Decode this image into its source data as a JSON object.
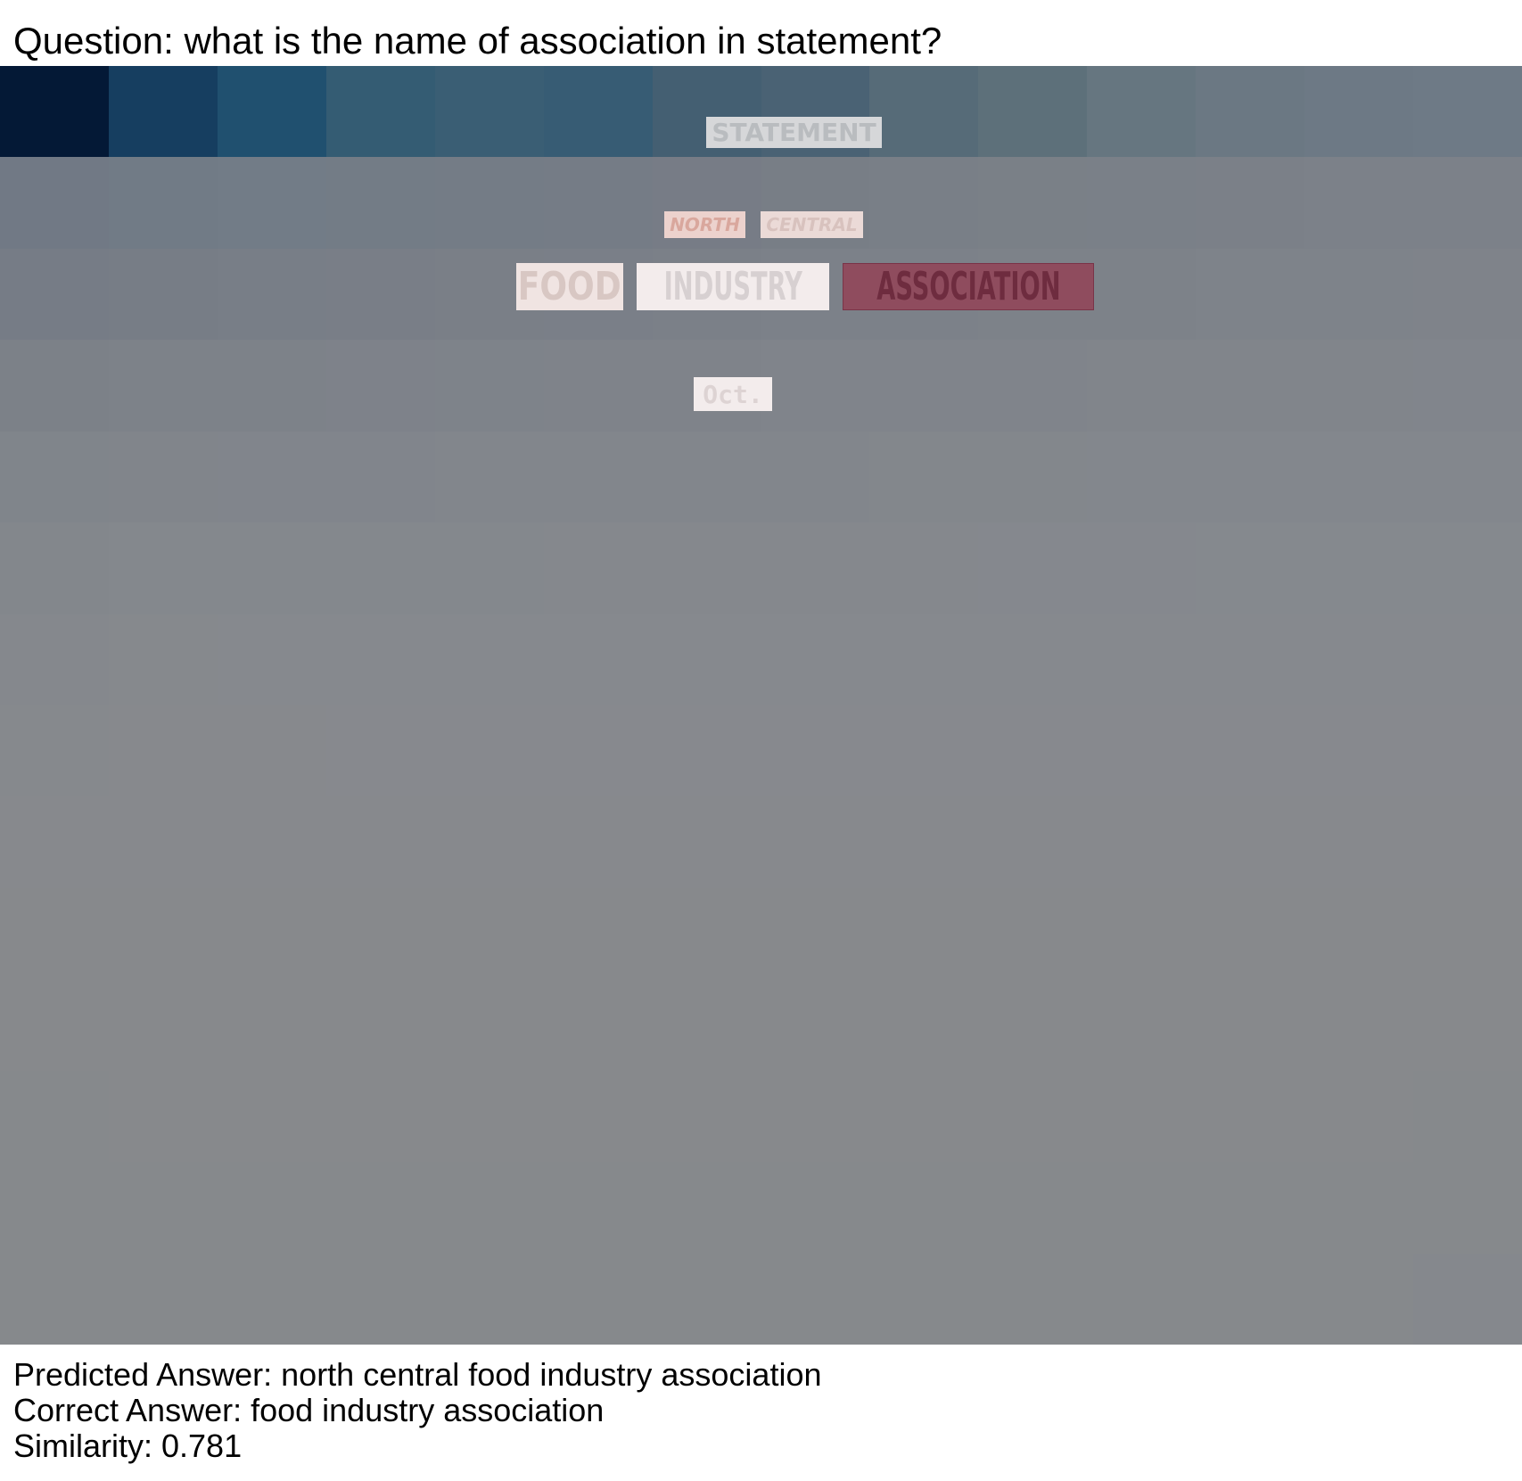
{
  "question": "Question: what is the name of association in statement?",
  "document": {
    "words": {
      "statement": "STATEMENT",
      "north": "NORTH",
      "central": "CENTRAL",
      "food": "FOOD",
      "industry": "INDUSTRY",
      "association": "ASSOCIATION",
      "oct": "Oct."
    },
    "heatmap_colors": [
      [
        "#041936",
        "#163e60",
        "#20506f",
        "#345c73",
        "#3a5e74",
        "#375c74",
        "#445f72",
        "#4a6274",
        "#566b78",
        "#5d707a",
        "#667680",
        "#6b7883",
        "#6d7985",
        "#6e7a86"
      ],
      [
        "#717985",
        "#717b86",
        "#727c87",
        "#737c86",
        "#747c86",
        "#757c86",
        "#777c86",
        "#787e86",
        "#797f87",
        "#7a8087",
        "#7a8088",
        "#7b8088",
        "#7c8189",
        "#7c8189"
      ],
      [
        "#767c86",
        "#777d86",
        "#787e87",
        "#797e87",
        "#7a7f87",
        "#7a7f88",
        "#7b8088",
        "#7c8189",
        "#7c8189",
        "#7d8289",
        "#7d8289",
        "#7e838a",
        "#7e838a",
        "#7f838a"
      ],
      [
        "#7c8188",
        "#7d8289",
        "#7d8289",
        "#7e828a",
        "#7e838a",
        "#7f838a",
        "#7f838a",
        "#80848b",
        "#80848b",
        "#80848b",
        "#81858b",
        "#81858b",
        "#81858b",
        "#81858c"
      ],
      [
        "#80858b",
        "#81858b",
        "#81858c",
        "#81858c",
        "#82868c",
        "#82868c",
        "#82868c",
        "#82868c",
        "#83878c",
        "#83878c",
        "#83878d",
        "#83878d",
        "#83878d",
        "#83878d"
      ],
      [
        "#83878c",
        "#84888d",
        "#84888d",
        "#84888d",
        "#84888d",
        "#85888d",
        "#85888d",
        "#85888d",
        "#85888d",
        "#85888e",
        "#85888e",
        "#85898e",
        "#85898e",
        "#85898e"
      ],
      [
        "#85888d",
        "#86898d",
        "#86898e",
        "#86898e",
        "#86898e",
        "#86898e",
        "#86898e",
        "#86898e",
        "#86898e",
        "#86898e",
        "#86898e",
        "#86898e",
        "#86898e",
        "#86898e"
      ],
      [
        "#86898d",
        "#87898d",
        "#87898d",
        "#87898e",
        "#87898e",
        "#87898e",
        "#87898e",
        "#87898e",
        "#87898e",
        "#87898e",
        "#87898e",
        "#87898e",
        "#87898e",
        "#87898e"
      ],
      [
        "#87898d",
        "#87898d",
        "#87898d",
        "#87898d",
        "#87898d",
        "#87898d",
        "#87898d",
        "#87898d",
        "#87898d",
        "#87898d",
        "#87898d",
        "#87898d",
        "#87898d",
        "#87898d"
      ],
      [
        "#87898c",
        "#87898c",
        "#87898c",
        "#87898c",
        "#87898c",
        "#87898c",
        "#87898c",
        "#87898c",
        "#87898c",
        "#87898c",
        "#87898c",
        "#87898c",
        "#87898c",
        "#87898c"
      ],
      [
        "#87898c",
        "#87898c",
        "#87898c",
        "#87898c",
        "#87898c",
        "#87898c",
        "#87898c",
        "#87898c",
        "#87898c",
        "#87898c",
        "#87898c",
        "#87898c",
        "#87898c",
        "#87898c"
      ],
      [
        "#86898c",
        "#87898c",
        "#87898c",
        "#87898c",
        "#87898c",
        "#87898c",
        "#87898c",
        "#87898c",
        "#87898c",
        "#87898c",
        "#87898c",
        "#87898c",
        "#87898c",
        "#86898c"
      ],
      [
        "#86898c",
        "#86898c",
        "#86898c",
        "#86898c",
        "#86898c",
        "#86898c",
        "#86898c",
        "#86898c",
        "#86898c",
        "#86898c",
        "#86898c",
        "#86898c",
        "#86898c",
        "#86898c"
      ],
      [
        "#86898c",
        "#86898c",
        "#86898c",
        "#86898c",
        "#86898c",
        "#86898c",
        "#86898c",
        "#86898c",
        "#86898c",
        "#86898c",
        "#86898c",
        "#86898c",
        "#86898c",
        "#85888d"
      ]
    ]
  },
  "answers": {
    "predicted": "Predicted Answer: north central food industry association",
    "correct": "Correct Answer: food industry association",
    "similarity": "Similarity: 0.781"
  }
}
